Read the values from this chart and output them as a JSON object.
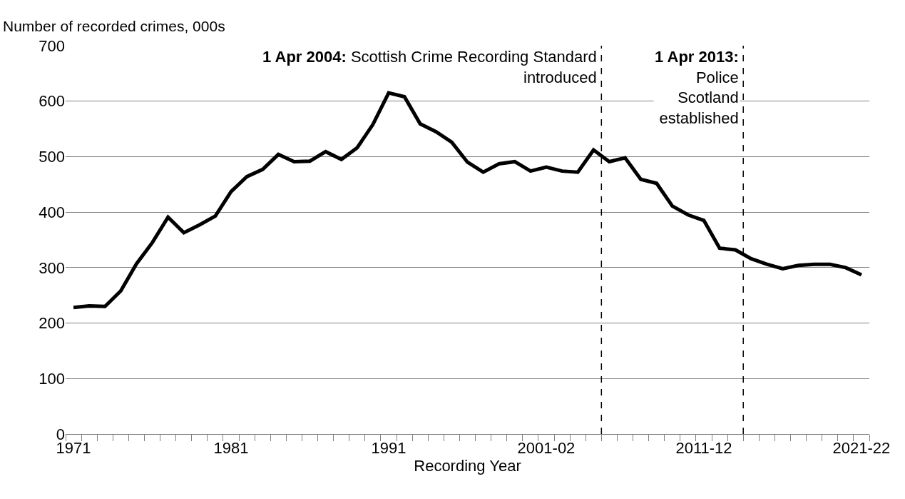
{
  "chart_data": {
    "type": "line",
    "ylabel": "Number of recorded crimes, 000s",
    "xlabel": "Recording Year",
    "x": [
      1971,
      1972,
      1973,
      1974,
      1975,
      1976,
      1977,
      1978,
      1979,
      1980,
      1981,
      1982,
      1983,
      1984,
      1985,
      1986,
      1987,
      1988,
      1989,
      1990,
      1991,
      1992,
      1993,
      1994,
      1995,
      1996,
      1997,
      1998,
      1999,
      2000,
      2001,
      2002,
      2003,
      2004,
      2005,
      2006,
      2007,
      2008,
      2009,
      2010,
      2011,
      2012,
      2013,
      2014,
      2015,
      2016,
      2017,
      2018,
      2019,
      2020,
      2021
    ],
    "series": [
      {
        "color": "#000000",
        "values": [
          228,
          231,
          230,
          258,
          307,
          345,
          391,
          363,
          377,
          393,
          437,
          464,
          477,
          504,
          491,
          492,
          509,
          495,
          516,
          558,
          615,
          608,
          559,
          545,
          526,
          490,
          472,
          487,
          491,
          474,
          481,
          474,
          472,
          512,
          491,
          498,
          459,
          452,
          411,
          395,
          385,
          335,
          332,
          316,
          306,
          298,
          304,
          306,
          306,
          300,
          287
        ]
      }
    ],
    "xlim": [
      1970.5,
      2021.5
    ],
    "xticks": [
      {
        "value": 1970.5,
        "label": null
      },
      {
        "value": 1971,
        "label": "1971"
      },
      {
        "value": 1971.5,
        "label": null
      },
      {
        "value": 1972.5,
        "label": null
      },
      {
        "value": 1973.5,
        "label": null
      },
      {
        "value": 1974.5,
        "label": null
      },
      {
        "value": 1975.5,
        "label": null
      },
      {
        "value": 1976.5,
        "label": null
      },
      {
        "value": 1977.5,
        "label": null
      },
      {
        "value": 1978.5,
        "label": null
      },
      {
        "value": 1979.5,
        "label": null
      },
      {
        "value": 1980.5,
        "label": null
      },
      {
        "value": 1981,
        "label": "1981"
      },
      {
        "value": 1981.5,
        "label": null
      },
      {
        "value": 1982.5,
        "label": null
      },
      {
        "value": 1983.5,
        "label": null
      },
      {
        "value": 1984.5,
        "label": null
      },
      {
        "value": 1985.5,
        "label": null
      },
      {
        "value": 1986.5,
        "label": null
      },
      {
        "value": 1987.5,
        "label": null
      },
      {
        "value": 1988.5,
        "label": null
      },
      {
        "value": 1989.5,
        "label": null
      },
      {
        "value": 1990.5,
        "label": null
      },
      {
        "value": 1991,
        "label": "1991"
      },
      {
        "value": 1991.5,
        "label": null
      },
      {
        "value": 1992.5,
        "label": null
      },
      {
        "value": 1993.5,
        "label": null
      },
      {
        "value": 1994.5,
        "label": null
      },
      {
        "value": 1995.5,
        "label": null
      },
      {
        "value": 1996.5,
        "label": null
      },
      {
        "value": 1997.5,
        "label": null
      },
      {
        "value": 1998.5,
        "label": null
      },
      {
        "value": 1999.5,
        "label": null
      },
      {
        "value": 2000.5,
        "label": null
      },
      {
        "value": 2001,
        "label": "2001-02"
      },
      {
        "value": 2001.5,
        "label": null
      },
      {
        "value": 2002.5,
        "label": null
      },
      {
        "value": 2003.5,
        "label": null
      },
      {
        "value": 2004.5,
        "label": null
      },
      {
        "value": 2005.5,
        "label": null
      },
      {
        "value": 2006.5,
        "label": null
      },
      {
        "value": 2007.5,
        "label": null
      },
      {
        "value": 2008.5,
        "label": null
      },
      {
        "value": 2009.5,
        "label": null
      },
      {
        "value": 2010.5,
        "label": null
      },
      {
        "value": 2011,
        "label": "2011-12"
      },
      {
        "value": 2011.5,
        "label": null
      },
      {
        "value": 2012.5,
        "label": null
      },
      {
        "value": 2013.5,
        "label": null
      },
      {
        "value": 2014.5,
        "label": null
      },
      {
        "value": 2015.5,
        "label": null
      },
      {
        "value": 2016.5,
        "label": null
      },
      {
        "value": 2017.5,
        "label": null
      },
      {
        "value": 2018.5,
        "label": null
      },
      {
        "value": 2019.5,
        "label": null
      },
      {
        "value": 2020.5,
        "label": null
      },
      {
        "value": 2021,
        "label": "2021-22"
      },
      {
        "value": 2021.5,
        "label": null
      }
    ],
    "ylim": [
      0,
      700
    ],
    "yticks": [
      0,
      100,
      200,
      300,
      400,
      500,
      600,
      700
    ],
    "grid": "y",
    "marker": "none",
    "line_style": "solid",
    "ref_lines": [
      {
        "axis": "x",
        "value": 2004.5,
        "label": "1 Apr 2004: Scottish Crime Recording Standard\nintroduced",
        "color": "#000000",
        "line_style": "dashed"
      },
      {
        "axis": "x",
        "value": 2013.5,
        "label": "1 Apr 2013:\nPolice\nScotland\nestablished",
        "color": "#000000",
        "line_style": "dashed"
      }
    ]
  }
}
